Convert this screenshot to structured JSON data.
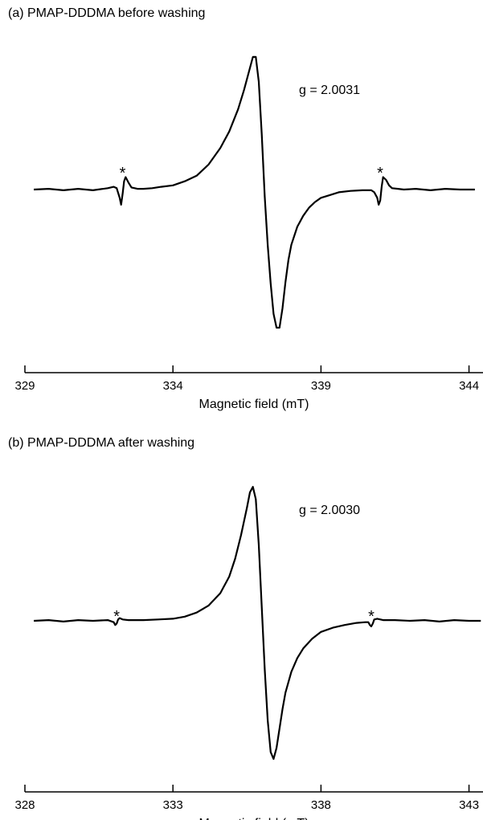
{
  "chart_data": [
    {
      "type": "line",
      "title": "(a) PMAP-DDDMA before washing",
      "xlabel": "Magnetic field (mT)",
      "ylabel": "",
      "annotation": "g = 2.0031",
      "marker_symbol": "*",
      "markers_x": [
        332.3,
        341.0
      ],
      "xlim": [
        329,
        344.5
      ],
      "xticks": [
        329,
        334,
        339,
        344
      ],
      "ylim": [
        -1.05,
        1.05
      ],
      "grid": false,
      "series": [
        {
          "x": [
            329.3,
            329.8,
            330.3,
            330.8,
            331.3,
            331.8,
            332.0,
            332.1,
            332.2,
            332.25,
            332.3,
            332.35,
            332.4,
            332.5,
            332.6,
            332.8,
            333.0,
            333.3,
            333.6,
            334.0,
            334.4,
            334.8,
            335.2,
            335.6,
            335.9,
            336.2,
            336.4,
            336.6,
            336.7,
            336.8,
            336.9,
            337.0,
            337.1,
            337.2,
            337.3,
            337.4,
            337.5,
            337.6,
            337.7,
            337.8,
            337.9,
            338.0,
            338.2,
            338.4,
            338.6,
            338.8,
            339.0,
            339.3,
            339.6,
            340.0,
            340.4,
            340.7,
            340.8,
            340.9,
            340.95,
            341.0,
            341.05,
            341.1,
            341.2,
            341.3,
            341.4,
            341.6,
            341.8,
            342.2,
            342.7,
            343.2,
            343.7,
            344.2
          ],
          "y": [
            0,
            0.005,
            -0.005,
            0.005,
            -0.005,
            0.01,
            0.02,
            0.01,
            -0.06,
            -0.11,
            -0.03,
            0.06,
            0.09,
            0.05,
            0.015,
            0.005,
            0.005,
            0.01,
            0.02,
            0.03,
            0.06,
            0.1,
            0.18,
            0.3,
            0.42,
            0.58,
            0.72,
            0.88,
            0.96,
            0.96,
            0.78,
            0.4,
            -0.05,
            -0.4,
            -0.68,
            -0.9,
            -1.0,
            -1.0,
            -0.86,
            -0.67,
            -0.51,
            -0.4,
            -0.27,
            -0.19,
            -0.13,
            -0.09,
            -0.06,
            -0.04,
            -0.02,
            -0.01,
            -0.005,
            -0.005,
            -0.02,
            -0.06,
            -0.11,
            -0.08,
            0.02,
            0.09,
            0.07,
            0.03,
            0.01,
            0.005,
            0,
            0.005,
            -0.005,
            0.005,
            0,
            0
          ]
        }
      ]
    },
    {
      "type": "line",
      "title": "(b) PMAP-DDDMA after washing",
      "xlabel": "Magnetic field (mT)",
      "ylabel": "",
      "annotation": "g = 2.0030",
      "marker_symbol": "*",
      "markers_x": [
        331.1,
        339.7
      ],
      "xlim": [
        328,
        343.5
      ],
      "xticks": [
        328,
        333,
        338,
        343
      ],
      "ylim": [
        -1.05,
        1.05
      ],
      "grid": false,
      "series": [
        {
          "x": [
            328.3,
            328.8,
            329.3,
            329.8,
            330.3,
            330.8,
            331.0,
            331.05,
            331.1,
            331.15,
            331.2,
            331.3,
            331.5,
            332.0,
            332.5,
            333.0,
            333.4,
            333.8,
            334.2,
            334.6,
            334.9,
            335.1,
            335.3,
            335.5,
            335.6,
            335.7,
            335.8,
            335.9,
            336.0,
            336.1,
            336.2,
            336.3,
            336.4,
            336.5,
            336.6,
            336.7,
            336.8,
            337.0,
            337.2,
            337.4,
            337.7,
            338.0,
            338.4,
            338.8,
            339.2,
            339.5,
            339.6,
            339.65,
            339.7,
            339.75,
            339.8,
            339.9,
            340.1,
            340.5,
            341.0,
            341.5,
            342.0,
            342.5,
            343.0,
            343.4
          ],
          "y": [
            0,
            0.005,
            -0.005,
            0.005,
            0,
            0.005,
            -0.01,
            -0.03,
            -0.02,
            0.01,
            0.02,
            0.01,
            0.005,
            0.005,
            0.01,
            0.015,
            0.03,
            0.06,
            0.11,
            0.2,
            0.32,
            0.45,
            0.62,
            0.82,
            0.93,
            0.97,
            0.88,
            0.55,
            0.1,
            -0.35,
            -0.72,
            -0.95,
            -1.0,
            -0.92,
            -0.78,
            -0.64,
            -0.52,
            -0.37,
            -0.27,
            -0.2,
            -0.13,
            -0.08,
            -0.05,
            -0.03,
            -0.015,
            -0.01,
            -0.01,
            -0.03,
            -0.04,
            -0.02,
            0.01,
            0.015,
            0.005,
            0.005,
            0,
            0.005,
            -0.005,
            0.005,
            0,
            0
          ]
        }
      ]
    }
  ]
}
